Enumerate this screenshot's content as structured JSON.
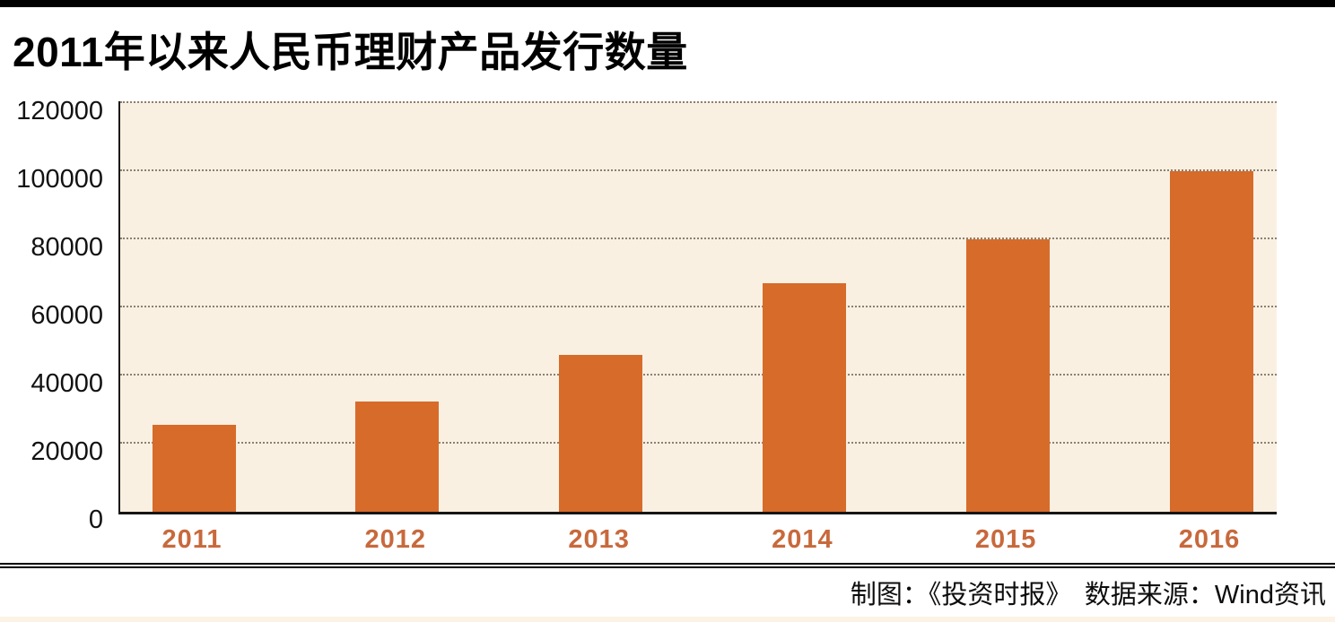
{
  "header": {
    "title": "2011年以来人民币理财产品发行数量"
  },
  "footer": {
    "credit": "制图：《投资时报》　数据来源：Wind资讯"
  },
  "colors": {
    "accent_bar": "#000000",
    "bar_fill": "#D76B2A",
    "plot_background": "#FAF0E2",
    "gridline": "#8B8071",
    "year_label": "#C8693C",
    "axis_line": "#161616",
    "bottom_strip": "#FCF3E6"
  },
  "chart_data": {
    "type": "bar",
    "title": "2011年以来人民币理财产品发行数量",
    "categories": [
      "2011",
      "2012",
      "2013",
      "2014",
      "2015",
      "2016"
    ],
    "values": [
      25500,
      32500,
      46000,
      67000,
      80000,
      100000
    ],
    "xlabel": "",
    "ylabel": "",
    "ylim": [
      0,
      120000
    ],
    "ytick_step": 20000,
    "ytick_labels": [
      "0",
      "20000",
      "40000",
      "60000",
      "80000",
      "100000",
      "120000"
    ],
    "grid": "horizontal-dotted",
    "legend": "none",
    "credit": "制图：《投资时报》",
    "source": "数据来源：Wind资讯"
  }
}
